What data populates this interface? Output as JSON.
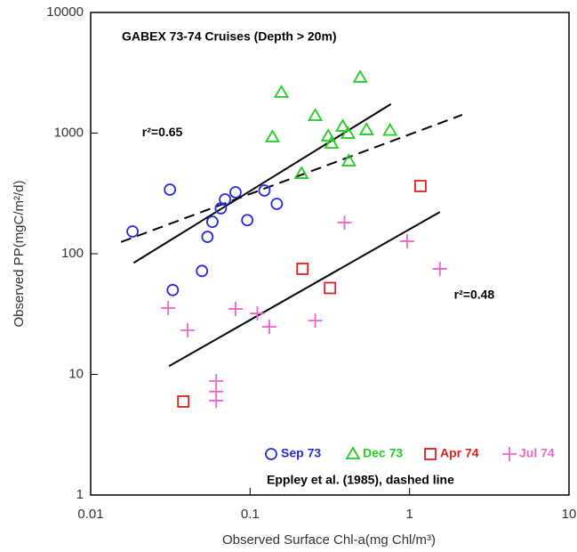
{
  "chart_data": {
    "type": "scatter",
    "title": "GABEX 73-74 Cruises (Depth > 20m)",
    "xlabel": "Observed Surface Chl-a(mg Chl/m³)",
    "ylabel": "Observed PP(mgC/m²/d)",
    "xscale": "log",
    "yscale": "log",
    "xlim": [
      0.01,
      10
    ],
    "ylim": [
      1,
      10000
    ],
    "xticks": [
      0.01,
      0.1,
      1,
      10
    ],
    "yticks": [
      1,
      10,
      100,
      1000,
      10000
    ],
    "annotations": [
      {
        "text": "r²=0.65",
        "x": 0.021,
        "y": 1000
      },
      {
        "text": "r²=0.48",
        "x": 1.9,
        "y": 45
      }
    ],
    "note": "Eppley et al. (1985), dashed line",
    "series": [
      {
        "name": "Sep 73",
        "color": "#2a2ad8",
        "marker": "circle",
        "x": [
          0.0183,
          0.0314,
          0.0327,
          0.0499,
          0.054,
          0.058,
          0.0655,
          0.0696,
          0.081,
          0.096,
          0.123,
          0.147
        ],
        "values": [
          153,
          340,
          50,
          72,
          138,
          184,
          238,
          282,
          323,
          190,
          334,
          259
        ]
      },
      {
        "name": "Dec 73",
        "color": "#22cc22",
        "marker": "triangle",
        "x": [
          0.138,
          0.157,
          0.21,
          0.256,
          0.309,
          0.324,
          0.381,
          0.411,
          0.416,
          0.49,
          0.537,
          0.754
        ],
        "values": [
          926,
          2170,
          461,
          1393,
          942,
          822,
          1136,
          991,
          586,
          2893,
          1062,
          1050
        ]
      },
      {
        "name": "Apr 74",
        "color": "#e02020",
        "marker": "square",
        "x": [
          0.0381,
          0.213,
          0.317,
          1.17
        ],
        "values": [
          5.96,
          75,
          52,
          364
        ]
      },
      {
        "name": "Jul 74",
        "color": "#ee66cc",
        "marker": "plus",
        "x": [
          0.0306,
          0.0406,
          0.0613,
          0.0613,
          0.0613,
          0.081,
          0.111,
          0.132,
          0.256,
          0.391,
          0.965,
          1.55
        ],
        "values": [
          35.5,
          23.2,
          8.8,
          7.2,
          6.05,
          34.9,
          32,
          24.8,
          27.9,
          181,
          127,
          75
        ]
      }
    ],
    "lines": [
      {
        "style": "solid",
        "x": [
          0.0186,
          0.764
        ],
        "values": [
          84,
          1740
        ]
      },
      {
        "style": "solid",
        "x": [
          0.031,
          1.55
        ],
        "values": [
          11.7,
          222
        ]
      },
      {
        "style": "dashed",
        "x": [
          0.0155,
          2.14
        ],
        "values": [
          125,
          1417
        ]
      }
    ]
  }
}
